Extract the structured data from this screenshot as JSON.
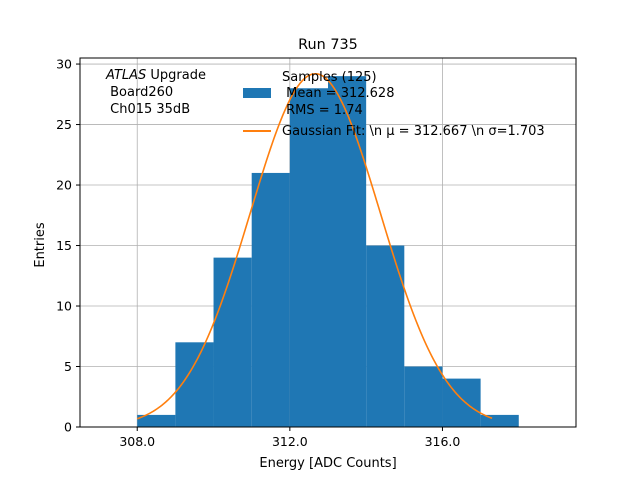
{
  "chart_data": {
    "type": "bar",
    "title": "Run 735",
    "xlabel": "Energy [ADC Counts]",
    "ylabel": "Entries",
    "xlim": [
      306.5,
      319.5
    ],
    "ylim": [
      0,
      30.5
    ],
    "xticks": [
      308.0,
      312.0,
      316.0
    ],
    "xtick_labels": [
      "308.0",
      "312.0",
      "316.0"
    ],
    "yticks": [
      0,
      5,
      10,
      15,
      20,
      25,
      30
    ],
    "ytick_labels": [
      "0",
      "5",
      "10",
      "15",
      "20",
      "25",
      "30"
    ],
    "grid": true,
    "annotation": {
      "italic": "ATLAS",
      "normal": " Upgrade",
      "line2": " Board260",
      "line3": " Ch015 35dB"
    },
    "histogram": {
      "bin_edges": [
        308,
        309,
        310,
        311,
        312,
        313,
        314,
        315,
        316,
        317,
        318
      ],
      "counts": [
        1,
        7,
        14,
        21,
        28,
        29,
        15,
        5,
        4,
        1
      ],
      "color": "#1f77b4"
    },
    "fit": {
      "mu": 312.667,
      "sigma": 1.703,
      "amplitude": 29.2,
      "x_range": [
        308.0,
        317.3
      ],
      "color": "#ff7f0e"
    },
    "legend": {
      "placement": "top-center",
      "entries": [
        {
          "lines": [
            "Samples (125)",
            " Mean = 312.628",
            " RMS = 1.74"
          ],
          "kind": "patch",
          "color": "#1f77b4"
        },
        {
          "lines": [
            "Gaussian Fit: \\n μ = 312.667 \\n σ=1.703"
          ],
          "kind": "line",
          "color": "#ff7f0e"
        }
      ]
    }
  }
}
